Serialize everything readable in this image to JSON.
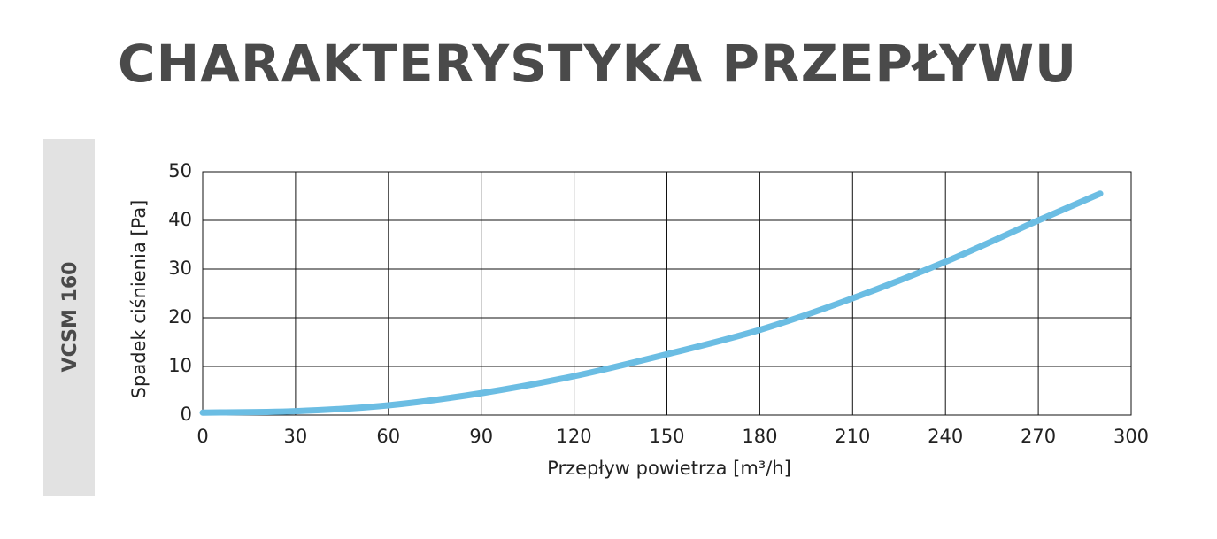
{
  "chart_data": {
    "type": "line",
    "title": "CHARAKTERYSTYKA PRZEPŁYWU",
    "side_label": "VCSM 160",
    "x_label": "Przepływ powietrza [m³/h]",
    "y_label": "Spadek ciśnienia [Pa]",
    "x": [
      0,
      30,
      60,
      90,
      120,
      150,
      180,
      210,
      240,
      270,
      290
    ],
    "values": [
      0.5,
      0.8,
      2,
      4.5,
      8,
      12.5,
      17.5,
      24,
      31.5,
      40,
      45.5
    ],
    "color": "#6bbde3",
    "xlim": [
      0,
      300
    ],
    "xticks": [
      0,
      30,
      60,
      90,
      120,
      150,
      180,
      210,
      240,
      270,
      300
    ],
    "ylim": [
      0,
      50
    ],
    "yticks": [
      0,
      10,
      20,
      30,
      40,
      50
    ],
    "grid": true
  }
}
